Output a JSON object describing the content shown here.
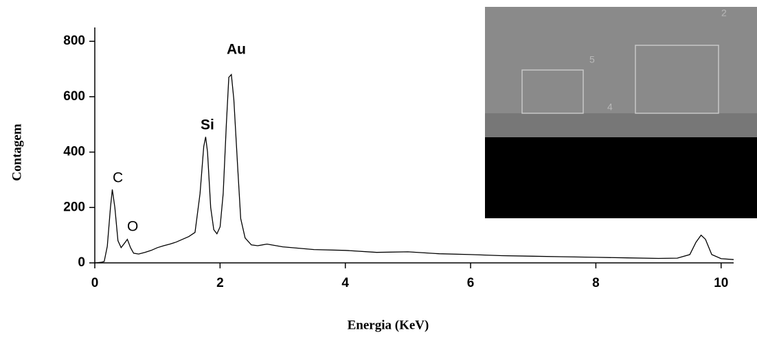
{
  "chart_data": {
    "type": "line",
    "x_label": "Energia (KeV)",
    "y_label": "Contagem",
    "color": "#000000",
    "x": [
      0,
      0.1,
      0.15,
      0.2,
      0.25,
      0.28,
      0.32,
      0.37,
      0.42,
      0.47,
      0.52,
      0.57,
      0.62,
      0.7,
      0.8,
      0.9,
      1.0,
      1.1,
      1.2,
      1.3,
      1.4,
      1.5,
      1.6,
      1.68,
      1.74,
      1.77,
      1.8,
      1.85,
      1.9,
      1.95,
      2.0,
      2.05,
      2.1,
      2.14,
      2.18,
      2.22,
      2.28,
      2.33,
      2.4,
      2.5,
      2.6,
      2.75,
      3.0,
      3.5,
      4.0,
      4.5,
      5.0,
      5.5,
      6.0,
      6.5,
      7.0,
      7.5,
      8.0,
      8.5,
      9.0,
      9.3,
      9.5,
      9.6,
      9.68,
      9.75,
      9.85,
      10.0,
      10.2
    ],
    "values": [
      0,
      2,
      5,
      60,
      200,
      265,
      200,
      80,
      55,
      70,
      85,
      55,
      35,
      32,
      38,
      45,
      55,
      62,
      68,
      75,
      85,
      95,
      110,
      250,
      420,
      455,
      400,
      200,
      120,
      105,
      130,
      250,
      500,
      670,
      680,
      590,
      350,
      160,
      90,
      65,
      62,
      68,
      58,
      48,
      45,
      38,
      40,
      33,
      30,
      26,
      24,
      22,
      20,
      18,
      16,
      17,
      30,
      75,
      100,
      85,
      30,
      15,
      12
    ],
    "xlim": [
      0,
      10.2
    ],
    "ylim": [
      0,
      850
    ],
    "xticks": [
      0,
      2,
      4,
      6,
      8,
      10
    ],
    "yticks": [
      0,
      200,
      400,
      600,
      800
    ],
    "annotations": [
      "C",
      "O",
      "Si",
      "Au"
    ]
  },
  "inset": {
    "labels": [
      "5",
      "4",
      "2"
    ]
  }
}
